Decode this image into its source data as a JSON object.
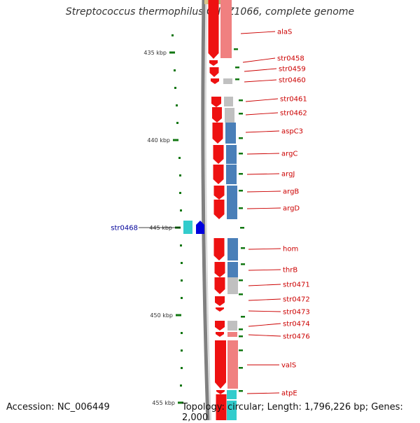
{
  "title": "Streptococcus thermophilus CNRZ1066, complete genome",
  "footer": {
    "accession": "Accession: NC_006449",
    "summary": "Topology: circular; Length: 1,796,226 bp; Genes: 2,000"
  },
  "colors": {
    "cds": "#ee1111",
    "cds_light": "#f08080",
    "cog_blue": "#4a7fb8",
    "cog_grey": "#c0c0c0",
    "cyan": "#33cccc",
    "reverse_blue": "#0000dd",
    "label_red": "#cc0000",
    "label_blue": "#000099",
    "tick_green": "#117711",
    "backbone": "#808080"
  },
  "scale": {
    "major_ticks": [
      "435 kbp",
      "440 kbp",
      "445 kbp",
      "450 kbp",
      "455 kbp"
    ]
  },
  "genes": [
    {
      "label": "alaS",
      "strand": "+"
    },
    {
      "label": "str0458",
      "strand": "+"
    },
    {
      "label": "str0459",
      "strand": "+"
    },
    {
      "label": "str0460",
      "strand": "+"
    },
    {
      "label": "str0461",
      "strand": "+"
    },
    {
      "label": "str0462",
      "strand": "+"
    },
    {
      "label": "aspC3",
      "strand": "+"
    },
    {
      "label": "argC",
      "strand": "+"
    },
    {
      "label": "argJ",
      "strand": "+"
    },
    {
      "label": "argB",
      "strand": "+"
    },
    {
      "label": "argD",
      "strand": "+"
    },
    {
      "label": "str0468",
      "strand": "-"
    },
    {
      "label": "hom",
      "strand": "+"
    },
    {
      "label": "thrB",
      "strand": "+"
    },
    {
      "label": "str0471",
      "strand": "+"
    },
    {
      "label": "str0472",
      "strand": "+"
    },
    {
      "label": "str0473",
      "strand": "+"
    },
    {
      "label": "str0474",
      "strand": "+"
    },
    {
      "label": "str0476",
      "strand": "+"
    },
    {
      "label": "valS",
      "strand": "+"
    },
    {
      "label": "atpE",
      "strand": "+"
    }
  ]
}
